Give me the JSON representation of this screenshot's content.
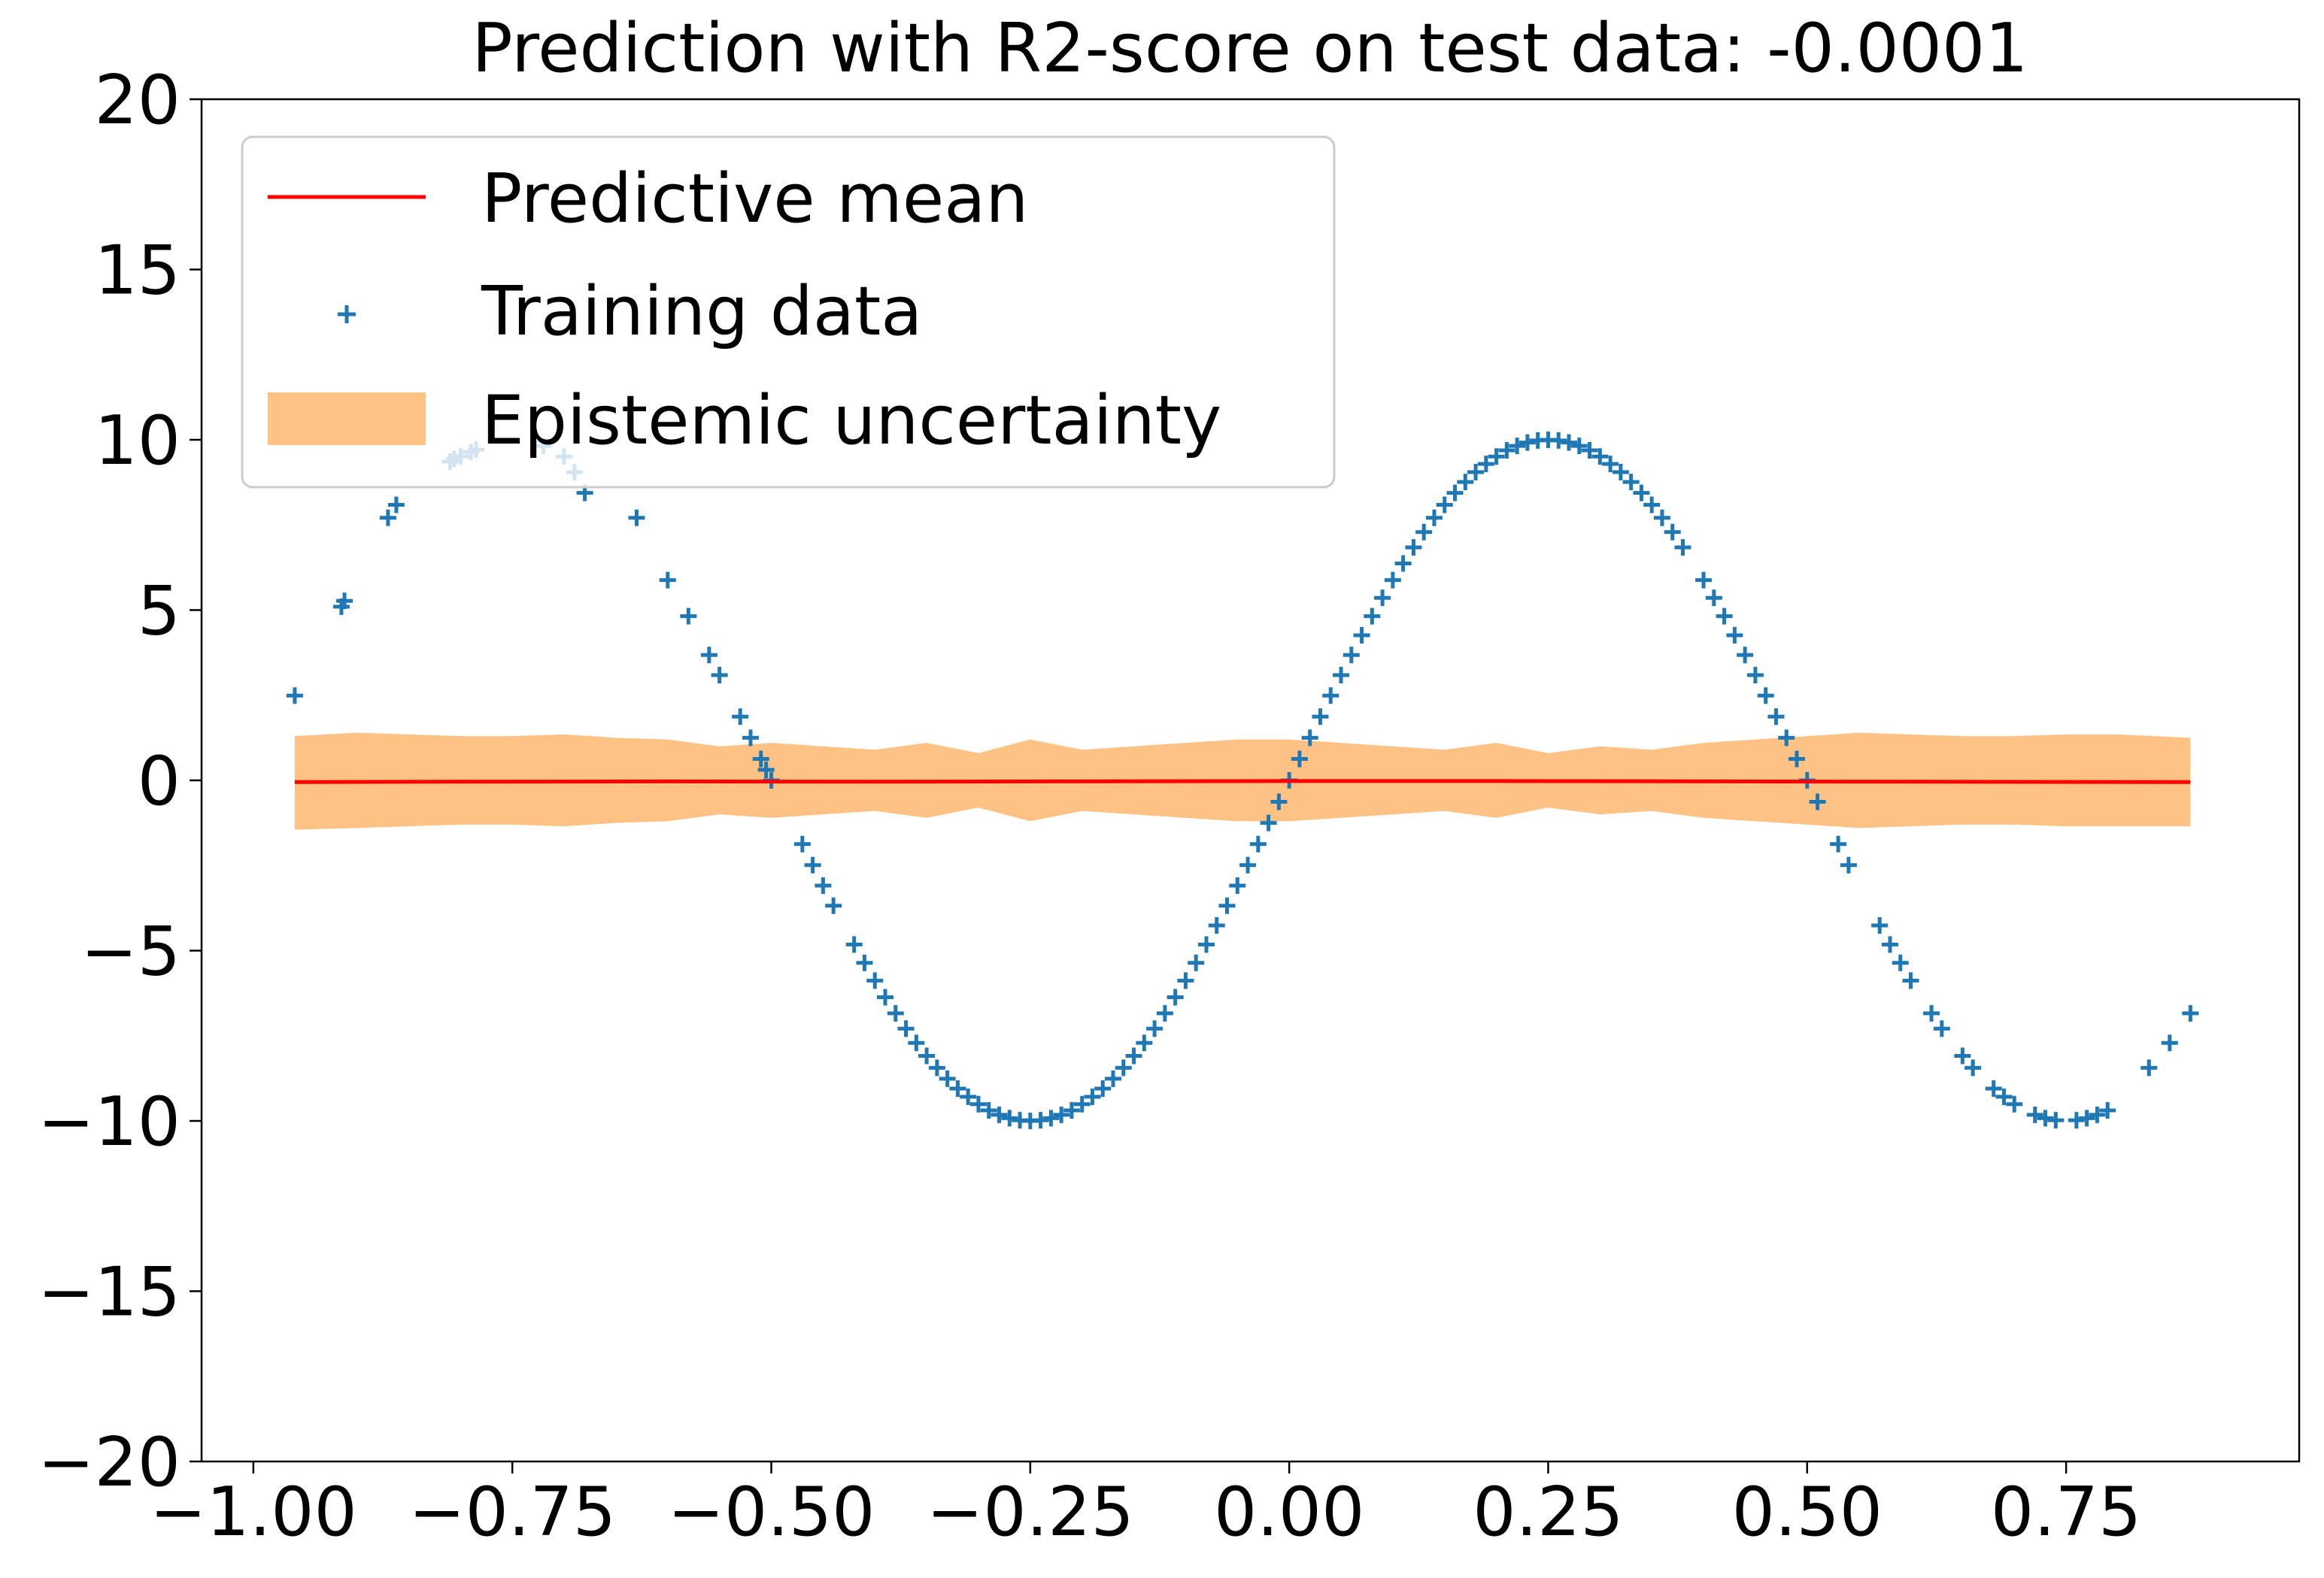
{
  "chart_data": {
    "type": "scatter",
    "title": "Prediction with R2-score on test data: -0.0001",
    "xlabel": "",
    "ylabel": "",
    "xlim": [
      -1.05,
      0.975
    ],
    "ylim": [
      -20,
      20
    ],
    "x_ticks": [
      -1.0,
      -0.75,
      -0.5,
      -0.25,
      0.0,
      0.25,
      0.5,
      0.75
    ],
    "y_ticks": [
      -20,
      -15,
      -10,
      -5,
      0,
      5,
      10,
      15,
      20
    ],
    "x_tick_labels": [
      "−1.00",
      "−0.75",
      "−0.50",
      "−0.25",
      "0.00",
      "0.25",
      "0.50",
      "0.75"
    ],
    "y_tick_labels": [
      "−20",
      "−15",
      "−10",
      "−5",
      "0",
      "5",
      "10",
      "15",
      "20"
    ],
    "grid": false,
    "legend_position": "top-left",
    "series": [
      {
        "name": "Predictive mean",
        "kind": "line",
        "color": "#ff0000",
        "x": [
          -0.96,
          -0.8,
          -0.6,
          -0.4,
          -0.2,
          0.0,
          0.2,
          0.4,
          0.6,
          0.87
        ],
        "y": [
          -0.05,
          -0.04,
          -0.03,
          -0.04,
          -0.03,
          -0.02,
          -0.02,
          -0.03,
          -0.04,
          -0.05
        ]
      },
      {
        "name": "Training data",
        "kind": "scatter",
        "marker": "plus",
        "color": "#1f77b4",
        "function": "10*sin(2*pi*x)",
        "x": [
          -0.96,
          -0.915,
          -0.912,
          -0.87,
          -0.862,
          -0.81,
          -0.806,
          -0.8,
          -0.79,
          -0.785,
          -0.72,
          -0.7,
          -0.69,
          -0.68,
          -0.63,
          -0.6,
          -0.58,
          -0.56,
          -0.55,
          -0.53,
          -0.52,
          -0.51,
          -0.505,
          -0.5,
          -0.47,
          -0.46,
          -0.45,
          -0.44,
          -0.42,
          -0.41,
          -0.4,
          -0.39,
          -0.38,
          -0.37,
          -0.36,
          -0.35,
          -0.34,
          -0.33,
          -0.32,
          -0.31,
          -0.3,
          -0.29,
          -0.28,
          -0.27,
          -0.26,
          -0.25,
          -0.24,
          -0.23,
          -0.22,
          -0.21,
          -0.2,
          -0.19,
          -0.18,
          -0.17,
          -0.16,
          -0.15,
          -0.14,
          -0.13,
          -0.12,
          -0.11,
          -0.1,
          -0.09,
          -0.08,
          -0.07,
          -0.06,
          -0.05,
          -0.04,
          -0.03,
          -0.02,
          -0.01,
          0.0,
          0.01,
          0.02,
          0.03,
          0.04,
          0.05,
          0.06,
          0.07,
          0.08,
          0.09,
          0.1,
          0.11,
          0.12,
          0.13,
          0.14,
          0.15,
          0.16,
          0.17,
          0.18,
          0.19,
          0.2,
          0.21,
          0.22,
          0.23,
          0.24,
          0.25,
          0.26,
          0.27,
          0.28,
          0.29,
          0.3,
          0.31,
          0.32,
          0.33,
          0.34,
          0.35,
          0.36,
          0.37,
          0.38,
          0.4,
          0.41,
          0.42,
          0.43,
          0.44,
          0.45,
          0.46,
          0.47,
          0.48,
          0.49,
          0.5,
          0.51,
          0.53,
          0.54,
          0.57,
          0.58,
          0.59,
          0.6,
          0.62,
          0.63,
          0.65,
          0.66,
          0.68,
          0.69,
          0.7,
          0.72,
          0.73,
          0.74,
          0.76,
          0.77,
          0.78,
          0.79,
          0.83,
          0.85,
          0.87
        ],
        "y": [
          2.49,
          5.1,
          5.27,
          7.71,
          8.09,
          9.36,
          9.44,
          9.51,
          9.64,
          9.71,
          9.82,
          9.51,
          9.05,
          8.44,
          7.71,
          5.88,
          4.82,
          3.68,
          3.09,
          1.87,
          1.25,
          0.63,
          0.31,
          0.0,
          -1.87,
          -2.49,
          -3.09,
          -3.68,
          -4.82,
          -5.36,
          -5.88,
          -6.37,
          -6.84,
          -7.29,
          -7.71,
          -8.09,
          -8.44,
          -8.76,
          -9.05,
          -9.29,
          -9.51,
          -9.69,
          -9.82,
          -9.92,
          -9.98,
          -10.0,
          -9.98,
          -9.92,
          -9.82,
          -9.69,
          -9.51,
          -9.29,
          -9.05,
          -8.76,
          -8.44,
          -8.09,
          -7.71,
          -7.29,
          -6.84,
          -6.37,
          -5.88,
          -5.36,
          -4.82,
          -4.26,
          -3.68,
          -3.09,
          -2.49,
          -1.87,
          -1.25,
          -0.63,
          0.0,
          0.63,
          1.25,
          1.87,
          2.49,
          3.09,
          3.68,
          4.26,
          4.82,
          5.36,
          5.88,
          6.37,
          6.84,
          7.29,
          7.71,
          8.09,
          8.44,
          8.76,
          9.05,
          9.29,
          9.51,
          9.69,
          9.82,
          9.92,
          9.98,
          10.0,
          9.98,
          9.92,
          9.82,
          9.69,
          9.51,
          9.29,
          9.05,
          8.76,
          8.44,
          8.09,
          7.71,
          7.29,
          6.84,
          5.88,
          5.36,
          4.82,
          4.26,
          3.68,
          3.09,
          2.49,
          1.87,
          1.25,
          0.63,
          0.0,
          -0.63,
          -1.87,
          -2.49,
          -4.26,
          -4.82,
          -5.36,
          -5.88,
          -6.84,
          -7.29,
          -8.09,
          -8.44,
          -9.05,
          -9.29,
          -9.51,
          -9.82,
          -9.92,
          -9.98,
          -9.98,
          -9.92,
          -9.82,
          -9.69,
          -8.44,
          -7.71,
          -6.84
        ]
      },
      {
        "name": "Epistemic uncertainty",
        "kind": "band",
        "color": "#ffbb78",
        "x": [
          -0.96,
          -0.9,
          -0.85,
          -0.8,
          -0.75,
          -0.7,
          -0.65,
          -0.6,
          -0.55,
          -0.5,
          -0.45,
          -0.4,
          -0.35,
          -0.3,
          -0.25,
          -0.2,
          -0.15,
          -0.1,
          -0.05,
          0.0,
          0.05,
          0.1,
          0.15,
          0.2,
          0.25,
          0.3,
          0.35,
          0.4,
          0.45,
          0.5,
          0.55,
          0.6,
          0.65,
          0.7,
          0.75,
          0.8,
          0.87
        ],
        "lower": [
          -1.45,
          -1.4,
          -1.35,
          -1.3,
          -1.3,
          -1.35,
          -1.25,
          -1.2,
          -1.0,
          -1.1,
          -1.0,
          -0.9,
          -1.1,
          -0.8,
          -1.2,
          -0.9,
          -1.0,
          -1.1,
          -1.2,
          -1.2,
          -1.1,
          -1.0,
          -0.9,
          -1.1,
          -0.8,
          -1.0,
          -0.9,
          -1.1,
          -1.2,
          -1.3,
          -1.4,
          -1.35,
          -1.3,
          -1.3,
          -1.35,
          -1.35,
          -1.35
        ],
        "upper": [
          1.3,
          1.4,
          1.35,
          1.3,
          1.3,
          1.35,
          1.25,
          1.2,
          1.0,
          1.1,
          1.0,
          0.9,
          1.1,
          0.8,
          1.2,
          0.9,
          1.0,
          1.1,
          1.2,
          1.2,
          1.1,
          1.0,
          0.9,
          1.1,
          0.8,
          1.0,
          0.9,
          1.1,
          1.2,
          1.3,
          1.4,
          1.35,
          1.3,
          1.3,
          1.35,
          1.35,
          1.25
        ]
      }
    ]
  }
}
